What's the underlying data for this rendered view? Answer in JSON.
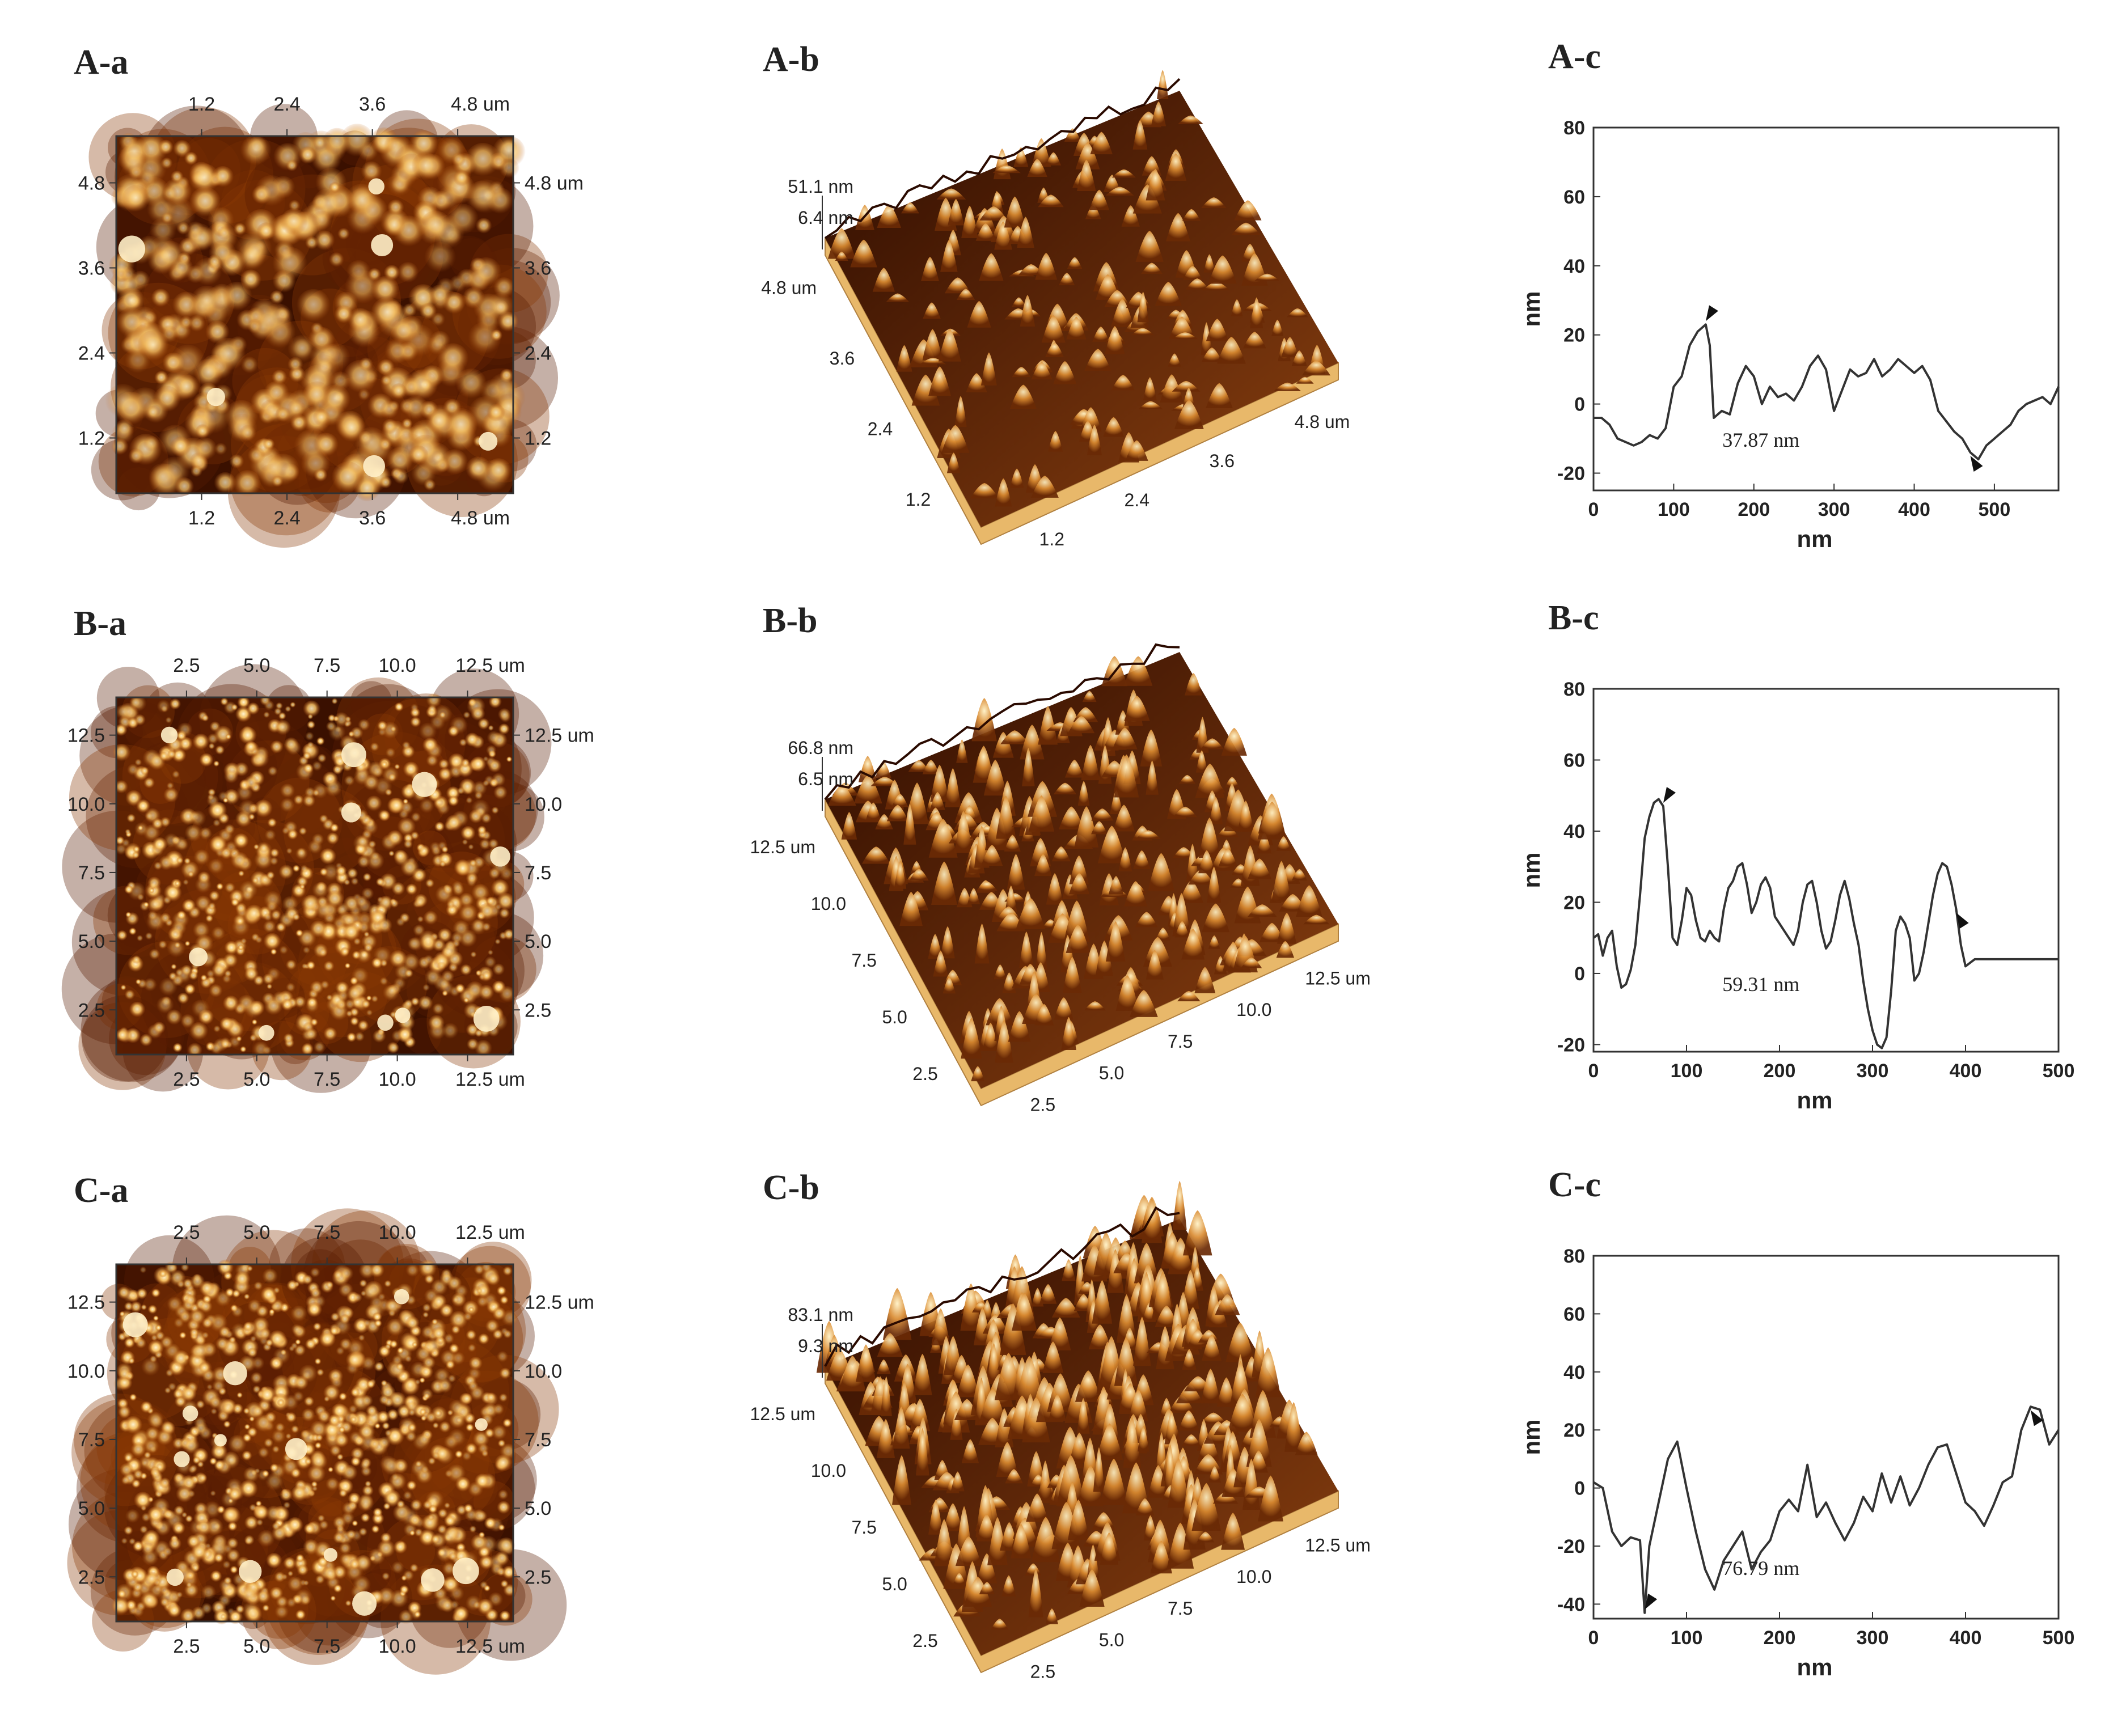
{
  "figure": {
    "colors": {
      "afm_dark": "#3a1000",
      "afm_mid": "#8a3a05",
      "afm_light": "#f0c070",
      "afm_highlight": "#fff0c8",
      "base_plane": "#e8b86a",
      "profile_line": "#333333",
      "axis": "#333333"
    },
    "rows": [
      {
        "a": {
          "label": "A-a",
          "top_ticks": [
            "1.2",
            "2.4",
            "3.6",
            "4.8 um"
          ],
          "bottom_ticks": [
            "1.2",
            "2.4",
            "3.6",
            "4.8 um"
          ],
          "left_ticks": [
            "4.8",
            "3.6",
            "2.4",
            "1.2"
          ],
          "right_ticks": [
            "4.8 um",
            "3.6",
            "2.4",
            "1.2"
          ],
          "blob_density": 0.35,
          "brightness": 0.5
        },
        "b": {
          "label": "A-b",
          "z_max": "51.1 nm",
          "z_min": "6.4 nm",
          "left_ticks": [
            "4.8 um",
            "3.6",
            "2.4",
            "1.2"
          ],
          "right_ticks": [
            "4.8 um",
            "3.6",
            "2.4",
            "1.2"
          ],
          "roughness": 0.45
        },
        "c": {
          "label": "A-c",
          "height_label": "37.87 nm",
          "marker_x": [
            140,
            475
          ]
        }
      },
      {
        "a": {
          "label": "B-a",
          "top_ticks": [
            "2.5",
            "5.0",
            "7.5",
            "10.0",
            "12.5 um"
          ],
          "bottom_ticks": [
            "2.5",
            "5.0",
            "7.5",
            "10.0",
            "12.5 um"
          ],
          "left_ticks": [
            "12.5",
            "10.0",
            "7.5",
            "5.0",
            "2.5"
          ],
          "right_ticks": [
            "12.5 um",
            "10.0",
            "7.5",
            "5.0",
            "2.5"
          ],
          "blob_density": 0.8,
          "brightness": 0.7
        },
        "b": {
          "label": "B-b",
          "z_max": "66.8 nm",
          "z_min": "6.5 nm",
          "left_ticks": [
            "12.5 um",
            "10.0",
            "7.5",
            "5.0",
            "2.5"
          ],
          "right_ticks": [
            "12.5 um",
            "10.0",
            "7.5",
            "5.0",
            "2.5"
          ],
          "roughness": 0.75
        },
        "c": {
          "label": "B-c",
          "height_label": "59.31 nm",
          "marker_x": [
            75,
            390
          ]
        }
      },
      {
        "a": {
          "label": "C-a",
          "top_ticks": [
            "2.5",
            "5.0",
            "7.5",
            "10.0",
            "12.5 um"
          ],
          "bottom_ticks": [
            "2.5",
            "5.0",
            "7.5",
            "10.0",
            "12.5 um"
          ],
          "left_ticks": [
            "12.5",
            "10.0",
            "7.5",
            "5.0",
            "2.5"
          ],
          "right_ticks": [
            "12.5 um",
            "10.0",
            "7.5",
            "5.0",
            "2.5"
          ],
          "blob_density": 1.0,
          "brightness": 0.75
        },
        "b": {
          "label": "C-b",
          "z_max": "83.1 nm",
          "z_min": "9.3 nm",
          "left_ticks": [
            "12.5 um",
            "10.0",
            "7.5",
            "5.0",
            "2.5"
          ],
          "right_ticks": [
            "12.5 um",
            "10.0",
            "7.5",
            "5.0",
            "2.5"
          ],
          "roughness": 1.0
        },
        "c": {
          "label": "C-c",
          "height_label": "76.79 nm",
          "marker_x": [
            55,
            475
          ]
        }
      }
    ]
  },
  "chart_data": [
    {
      "type": "line",
      "title": "A-c",
      "xlabel": "nm",
      "ylabel": "nm",
      "xlim": [
        0,
        580
      ],
      "ylim": [
        -25,
        80
      ],
      "xticks": [
        "0",
        "100",
        "200",
        "300",
        "400",
        "500"
      ],
      "xtick_values": [
        0,
        100,
        200,
        300,
        400,
        500
      ],
      "yticks": [
        "-20",
        "0",
        "20",
        "40",
        "60",
        "80"
      ],
      "ytick_values": [
        -20,
        0,
        20,
        40,
        60,
        80
      ],
      "annotation": "37.87 nm",
      "x": [
        0,
        10,
        20,
        30,
        40,
        50,
        60,
        70,
        80,
        90,
        100,
        110,
        120,
        130,
        140,
        145,
        150,
        160,
        170,
        180,
        190,
        200,
        210,
        220,
        230,
        240,
        250,
        260,
        270,
        280,
        290,
        300,
        310,
        320,
        330,
        340,
        350,
        360,
        370,
        380,
        390,
        400,
        410,
        420,
        430,
        440,
        450,
        460,
        470,
        480,
        490,
        500,
        510,
        520,
        530,
        540,
        550,
        560,
        570,
        580
      ],
      "values": [
        -4,
        -4,
        -6,
        -10,
        -11,
        -12,
        -11,
        -9,
        -10,
        -7,
        5,
        8,
        17,
        21,
        23,
        17,
        -4,
        -2,
        -3,
        6,
        11,
        8,
        0,
        5,
        2,
        3,
        1,
        5,
        11,
        14,
        10,
        -2,
        4,
        10,
        8,
        9,
        13,
        8,
        10,
        13,
        11,
        9,
        11,
        7,
        -2,
        -5,
        -8,
        -10,
        -14,
        -16,
        -12,
        -10,
        -8,
        -6,
        -2,
        0,
        1,
        2,
        0,
        5
      ]
    },
    {
      "type": "line",
      "title": "B-c",
      "xlabel": "nm",
      "ylabel": "nm",
      "xlim": [
        0,
        500
      ],
      "ylim": [
        -22,
        80
      ],
      "xticks": [
        "0",
        "100",
        "200",
        "300",
        "400",
        "500"
      ],
      "xtick_values": [
        0,
        100,
        200,
        300,
        400,
        500
      ],
      "yticks": [
        "-20",
        "0",
        "20",
        "40",
        "60",
        "80"
      ],
      "ytick_values": [
        -20,
        0,
        20,
        40,
        60,
        80
      ],
      "annotation": "59.31 nm",
      "x": [
        0,
        5,
        10,
        15,
        20,
        25,
        30,
        35,
        40,
        45,
        50,
        55,
        60,
        65,
        70,
        75,
        80,
        85,
        90,
        95,
        100,
        105,
        110,
        115,
        120,
        125,
        130,
        135,
        140,
        145,
        150,
        155,
        160,
        165,
        170,
        175,
        180,
        185,
        190,
        195,
        200,
        205,
        210,
        215,
        220,
        225,
        230,
        235,
        240,
        245,
        250,
        255,
        260,
        265,
        270,
        275,
        280,
        285,
        290,
        295,
        300,
        305,
        310,
        315,
        320,
        325,
        330,
        335,
        340,
        345,
        350,
        355,
        360,
        365,
        370,
        375,
        380,
        385,
        390,
        395,
        400,
        405,
        410,
        415,
        420,
        425,
        430,
        435,
        440,
        445,
        450,
        455,
        460,
        465,
        470,
        475,
        480,
        485,
        490,
        495,
        500
      ],
      "values": [
        10,
        11,
        5,
        10,
        12,
        2,
        -4,
        -3,
        1,
        8,
        22,
        38,
        44,
        48,
        49,
        47,
        30,
        10,
        8,
        15,
        24,
        22,
        15,
        10,
        9,
        12,
        10,
        9,
        18,
        24,
        26,
        30,
        31,
        25,
        17,
        20,
        25,
        27,
        24,
        16,
        14,
        12,
        10,
        8,
        12,
        20,
        25,
        26,
        20,
        12,
        7,
        9,
        15,
        22,
        26,
        21,
        14,
        8,
        -2,
        -10,
        -16,
        -20,
        -21,
        -18,
        -5,
        12,
        16,
        14,
        10,
        -2,
        0,
        6,
        14,
        22,
        28,
        31,
        30,
        25,
        18,
        8,
        2,
        3,
        4,
        4,
        4,
        4,
        4,
        4,
        4,
        4,
        4,
        4,
        4,
        4,
        4,
        4,
        4,
        4,
        4,
        4,
        4
      ]
    },
    {
      "type": "line",
      "title": "C-c",
      "xlabel": "nm",
      "ylabel": "nm",
      "xlim": [
        0,
        500
      ],
      "ylim": [
        -45,
        80
      ],
      "xticks": [
        "0",
        "100",
        "200",
        "300",
        "400",
        "500"
      ],
      "xtick_values": [
        0,
        100,
        200,
        300,
        400,
        500
      ],
      "yticks": [
        "-40",
        "-20",
        "0",
        "20",
        "40",
        "60",
        "80"
      ],
      "ytick_values": [
        -40,
        -20,
        0,
        20,
        40,
        60,
        80
      ],
      "annotation": "76.79 nm",
      "x": [
        0,
        10,
        20,
        30,
        40,
        50,
        55,
        60,
        70,
        80,
        90,
        100,
        110,
        120,
        130,
        140,
        150,
        160,
        170,
        180,
        190,
        200,
        210,
        220,
        230,
        240,
        250,
        260,
        270,
        280,
        290,
        300,
        310,
        320,
        330,
        340,
        350,
        360,
        370,
        380,
        390,
        400,
        410,
        420,
        430,
        440,
        450,
        460,
        470,
        480,
        490,
        500
      ],
      "values": [
        2,
        0,
        -15,
        -20,
        -17,
        -18,
        -43,
        -20,
        -5,
        10,
        16,
        0,
        -15,
        -28,
        -35,
        -25,
        -20,
        -15,
        -28,
        -22,
        -18,
        -8,
        -4,
        -8,
        8,
        -10,
        -5,
        -12,
        -18,
        -12,
        -3,
        -8,
        5,
        -5,
        4,
        -6,
        0,
        8,
        14,
        15,
        5,
        -5,
        -8,
        -13,
        -6,
        2,
        4,
        20,
        28,
        27,
        15,
        20
      ]
    }
  ]
}
